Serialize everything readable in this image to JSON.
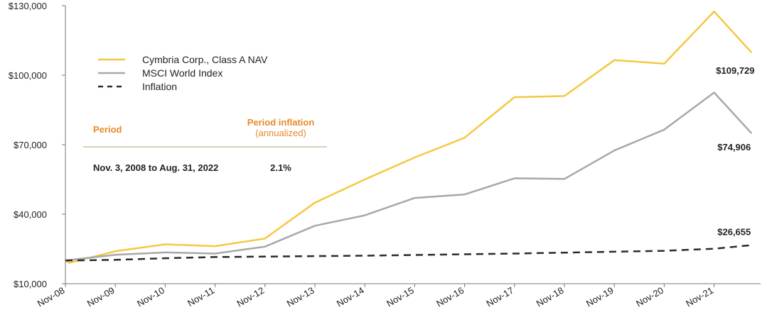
{
  "colors": {
    "nav": "#f5c842",
    "msci": "#a8a8a8",
    "inflation": "#2b2b2b",
    "axis": "#777777",
    "table_header": "#e8892b",
    "table_rule": "#c9c2a6"
  },
  "chart_data": {
    "type": "line",
    "title": "",
    "xlabel": "",
    "ylabel": "",
    "ylim": [
      10000,
      130000
    ],
    "y_ticks": [
      "$10,000",
      "$40,000",
      "$70,000",
      "$100,000",
      "$130,000"
    ],
    "y_tick_values": [
      10000,
      40000,
      70000,
      100000,
      130000
    ],
    "categories": [
      "Nov-08",
      "Nov-09",
      "Nov-10",
      "Nov-11",
      "Nov-12",
      "Nov-13",
      "Nov-14",
      "Nov-15",
      "Nov-16",
      "Nov-17",
      "Nov-18",
      "Nov-19",
      "Nov-20",
      "Nov-21"
    ],
    "grid": false,
    "legend": "top-left",
    "series": [
      {
        "name": "Cymbria Corp., Class A NAV",
        "color_key": "nav",
        "style": "solid",
        "x": [
          0.0,
          0.08,
          1.0,
          2.0,
          3.0,
          4.0,
          5.0,
          6.0,
          7.0,
          8.0,
          9.0,
          10.0,
          11.0,
          12.0,
          13.0,
          13.75
        ],
        "values": [
          20000,
          19000,
          24000,
          27000,
          26200,
          29500,
          45000,
          55000,
          64500,
          73000,
          90500,
          91000,
          106500,
          105000,
          127500,
          109729
        ],
        "end_label": "$109,729"
      },
      {
        "name": "MSCI World Index",
        "color_key": "msci",
        "style": "solid",
        "x": [
          0.0,
          1.0,
          2.0,
          3.0,
          4.0,
          5.0,
          6.0,
          7.0,
          8.0,
          9.0,
          10.0,
          11.0,
          12.0,
          13.0,
          13.75
        ],
        "values": [
          20000,
          22500,
          23500,
          23000,
          26000,
          35000,
          39500,
          47000,
          48500,
          55500,
          55200,
          67500,
          76500,
          92500,
          74906
        ],
        "end_label": "$74,906"
      },
      {
        "name": "Inflation",
        "color_key": "inflation",
        "style": "dashed",
        "x": [
          0.0,
          1.0,
          2.0,
          3.0,
          4.0,
          5.0,
          6.0,
          7.0,
          8.0,
          9.0,
          10.0,
          11.0,
          12.0,
          13.0,
          13.75
        ],
        "values": [
          20000,
          20300,
          21000,
          21500,
          21700,
          21900,
          22100,
          22400,
          22700,
          23000,
          23400,
          23800,
          24200,
          25100,
          26655
        ],
        "end_label": "$26,655"
      }
    ]
  },
  "table": {
    "header_period": "Period",
    "header_inflation": "Period inflation",
    "header_inflation_sub": "(annualized)",
    "row_period": "Nov. 3, 2008 to Aug. 31, 2022",
    "row_inflation": "2.1%"
  }
}
